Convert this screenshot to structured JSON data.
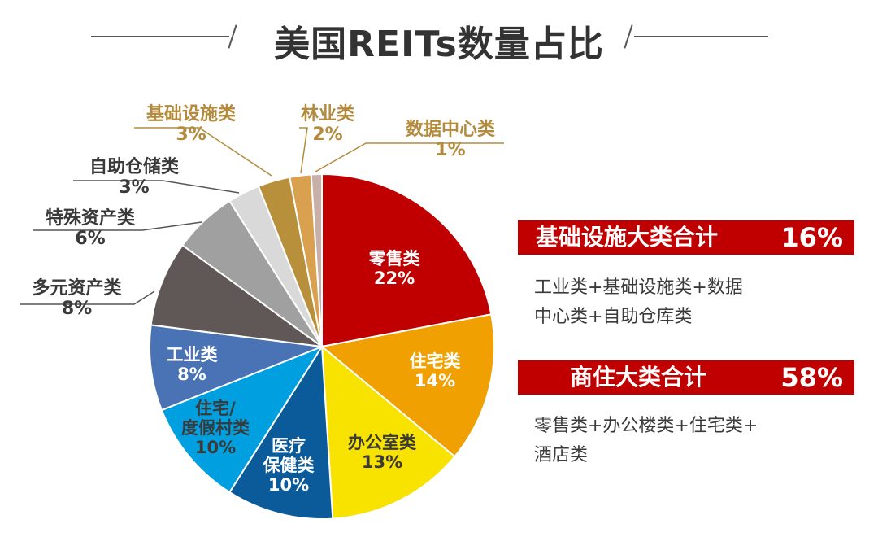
{
  "title": "美国REITs数量占比",
  "chart_data": {
    "type": "pie",
    "title": "美国REITs数量占比",
    "start_angle": "12 o'clock, clockwise",
    "categories": [
      "零售类",
      "住宅类",
      "办公室类",
      "医疗保健类",
      "住宅/度假村类",
      "工业类",
      "多元资产类",
      "特殊资产类",
      "自助仓储类",
      "基础设施类",
      "林业类",
      "数据中心类"
    ],
    "values": [
      22,
      14,
      13,
      10,
      10,
      8,
      8,
      6,
      3,
      3,
      2,
      1
    ],
    "unit": "%",
    "colors": [
      "#c00000",
      "#f0a000",
      "#f7e200",
      "#0b5a99",
      "#00a0e0",
      "#4a73b5",
      "#605856",
      "#a0a0a0",
      "#d9d9d9",
      "#b8903c",
      "#d9a050",
      "#c8b0a8"
    ]
  },
  "slices": [
    {
      "name": "零售类",
      "pct": "22%"
    },
    {
      "name": "住宅类",
      "pct": "14%"
    },
    {
      "name": "办公室类",
      "pct": "13%"
    },
    {
      "name1": "医疗",
      "name2": "保健类",
      "pct": "10%"
    },
    {
      "name1": "住宅/",
      "name2": "度假村类",
      "pct": "10%"
    },
    {
      "name": "工业类",
      "pct": "8%"
    },
    {
      "name": "多元资产类",
      "pct": "8%"
    },
    {
      "name": "特殊资产类",
      "pct": "6%"
    },
    {
      "name": "自助仓储类",
      "pct": "3%"
    },
    {
      "name": "基础设施类",
      "pct": "3%"
    },
    {
      "name": "林业类",
      "pct": "2%"
    },
    {
      "name": "数据中心类",
      "pct": "1%"
    }
  ],
  "summary": [
    {
      "title": "基础设施大类合计",
      "pct": "16%",
      "line1": "工业类+基础设施类+数据",
      "line2": "中心类+自助仓库类"
    },
    {
      "title": "商住大类合计",
      "pct": "58%",
      "line1": "零售类+办公楼类+住宅类+",
      "line2": "酒店类"
    }
  ]
}
